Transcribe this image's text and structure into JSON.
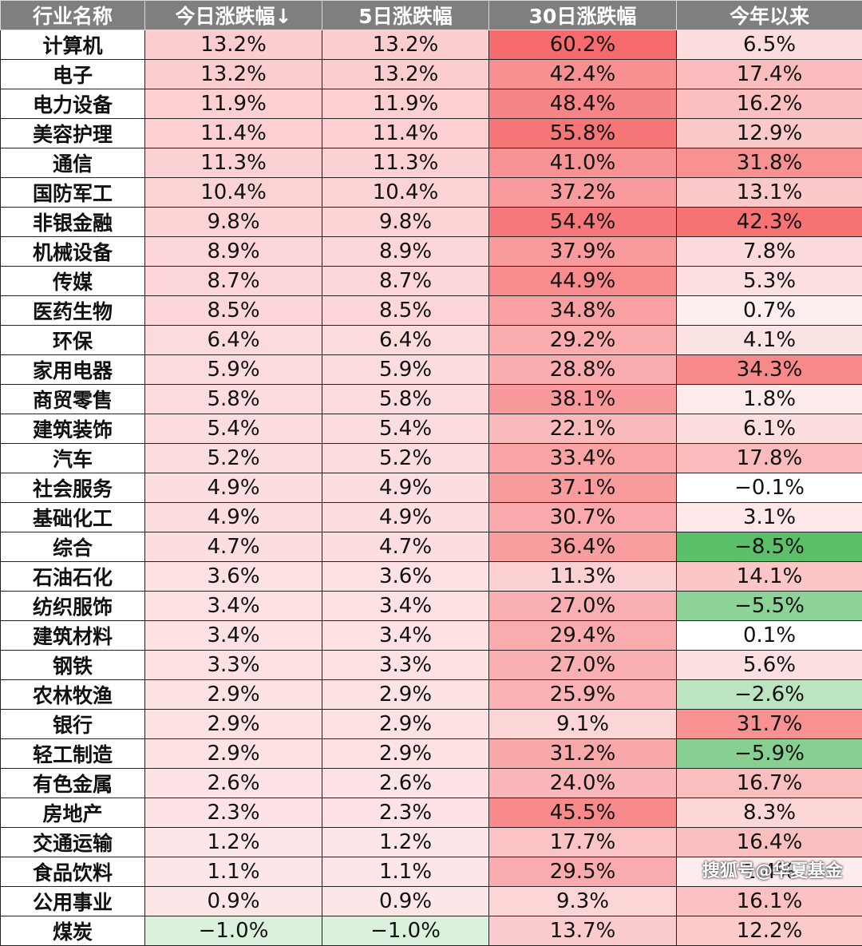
{
  "headers": [
    "行业名称",
    "今日涨跌幅↓",
    "5日涨跌幅",
    "30日涨跌幅",
    "今年以来"
  ],
  "rows": [
    {
      "name": "计算机",
      "d1": "13.2%",
      "d5": "13.2%",
      "d30": "60.2%",
      "ytd": "6.5%"
    },
    {
      "name": "电子",
      "d1": "13.2%",
      "d5": "13.2%",
      "d30": "42.4%",
      "ytd": "17.4%"
    },
    {
      "name": "电力设备",
      "d1": "11.9%",
      "d5": "11.9%",
      "d30": "48.4%",
      "ytd": "16.2%"
    },
    {
      "name": "美容护理",
      "d1": "11.4%",
      "d5": "11.4%",
      "d30": "55.8%",
      "ytd": "12.9%"
    },
    {
      "name": "通信",
      "d1": "11.3%",
      "d5": "11.3%",
      "d30": "41.0%",
      "ytd": "31.8%"
    },
    {
      "name": "国防军工",
      "d1": "10.4%",
      "d5": "10.4%",
      "d30": "37.2%",
      "ytd": "13.1%"
    },
    {
      "name": "非银金融",
      "d1": "9.8%",
      "d5": "9.8%",
      "d30": "54.4%",
      "ytd": "42.3%"
    },
    {
      "name": "机械设备",
      "d1": "8.9%",
      "d5": "8.9%",
      "d30": "37.9%",
      "ytd": "7.8%"
    },
    {
      "name": "传媒",
      "d1": "8.7%",
      "d5": "8.7%",
      "d30": "44.9%",
      "ytd": "5.3%"
    },
    {
      "name": "医药生物",
      "d1": "8.5%",
      "d5": "8.5%",
      "d30": "34.8%",
      "ytd": "0.7%"
    },
    {
      "name": "环保",
      "d1": "6.4%",
      "d5": "6.4%",
      "d30": "29.2%",
      "ytd": "4.1%"
    },
    {
      "name": "家用电器",
      "d1": "5.9%",
      "d5": "5.9%",
      "d30": "28.8%",
      "ytd": "34.3%"
    },
    {
      "name": "商贸零售",
      "d1": "5.8%",
      "d5": "5.8%",
      "d30": "38.1%",
      "ytd": "1.8%"
    },
    {
      "name": "建筑装饰",
      "d1": "5.4%",
      "d5": "5.4%",
      "d30": "22.1%",
      "ytd": "6.1%"
    },
    {
      "name": "汽车",
      "d1": "5.2%",
      "d5": "5.2%",
      "d30": "33.4%",
      "ytd": "17.8%"
    },
    {
      "name": "社会服务",
      "d1": "4.9%",
      "d5": "4.9%",
      "d30": "37.1%",
      "ytd": "−0.1%"
    },
    {
      "name": "基础化工",
      "d1": "4.9%",
      "d5": "4.9%",
      "d30": "30.7%",
      "ytd": "3.1%"
    },
    {
      "name": "综合",
      "d1": "4.7%",
      "d5": "4.7%",
      "d30": "36.4%",
      "ytd": "−8.5%"
    },
    {
      "name": "石油石化",
      "d1": "3.6%",
      "d5": "3.6%",
      "d30": "11.3%",
      "ytd": "14.1%"
    },
    {
      "name": "纺织服饰",
      "d1": "3.4%",
      "d5": "3.4%",
      "d30": "27.0%",
      "ytd": "−5.5%"
    },
    {
      "name": "建筑材料",
      "d1": "3.4%",
      "d5": "3.4%",
      "d30": "29.4%",
      "ytd": "0.1%"
    },
    {
      "name": "钢铁",
      "d1": "3.3%",
      "d5": "3.3%",
      "d30": "27.0%",
      "ytd": "5.6%"
    },
    {
      "name": "农林牧渔",
      "d1": "2.9%",
      "d5": "2.9%",
      "d30": "25.9%",
      "ytd": "−2.6%"
    },
    {
      "name": "银行",
      "d1": "2.9%",
      "d5": "2.9%",
      "d30": "9.1%",
      "ytd": "31.7%"
    },
    {
      "name": "轻工制造",
      "d1": "2.9%",
      "d5": "2.9%",
      "d30": "31.2%",
      "ytd": "−5.9%"
    },
    {
      "name": "有色金属",
      "d1": "2.6%",
      "d5": "2.6%",
      "d30": "24.0%",
      "ytd": "16.7%"
    },
    {
      "name": "房地产",
      "d1": "2.3%",
      "d5": "2.3%",
      "d30": "45.5%",
      "ytd": "8.3%"
    },
    {
      "name": "交通运输",
      "d1": "1.2%",
      "d5": "1.2%",
      "d30": "17.7%",
      "ytd": "16.4%"
    },
    {
      "name": "食品饮料",
      "d1": "1.1%",
      "d5": "1.1%",
      "d30": "29.5%",
      "ytd": "1.4%"
    },
    {
      "name": "公用事业",
      "d1": "0.9%",
      "d5": "0.9%",
      "d30": "9.3%",
      "ytd": "16.1%"
    },
    {
      "name": "煤炭",
      "d1": "−1.0%",
      "d5": "−1.0%",
      "d30": "13.7%",
      "ytd": "12.2%"
    }
  ],
  "watermark": "搜狐号@华夏基金"
}
